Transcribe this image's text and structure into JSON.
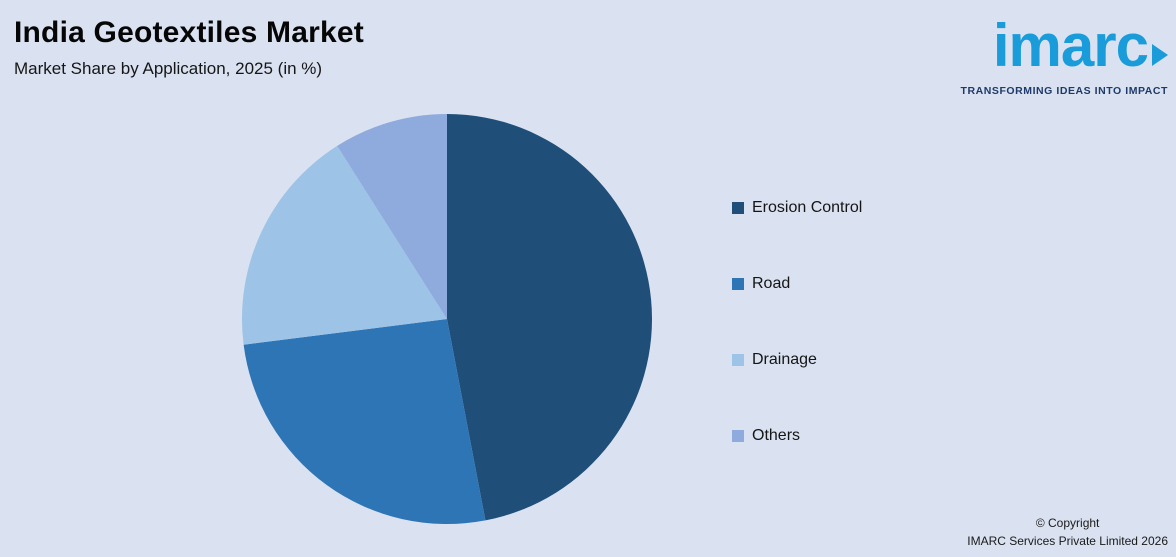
{
  "header": {
    "title": "India Geotextiles Market",
    "subtitle": "Market Share by Application, 2025 (in %)"
  },
  "logo": {
    "text": "imarc",
    "tagline": "TRANSFORMING IDEAS INTO IMPACT",
    "brand_color": "#199cd9",
    "tagline_color": "#1e3a68"
  },
  "chart_data": {
    "type": "pie",
    "title": "Market Share by Application, 2025 (in %)",
    "start_angle_deg": 0,
    "direction": "clockwise",
    "legend_position": "right",
    "data_labels": false,
    "slices": [
      {
        "label": "Erosion Control",
        "value": 47,
        "color": "#1f4e79"
      },
      {
        "label": "Road",
        "value": 26,
        "color": "#2e75b6"
      },
      {
        "label": "Drainage",
        "value": 18,
        "color": "#9dc3e6"
      },
      {
        "label": "Others",
        "value": 9,
        "color": "#8faadc"
      }
    ]
  },
  "footer": {
    "copyright_line1": "© Copyright",
    "copyright_line2": "IMARC Services Private Limited 2026"
  },
  "colors": {
    "background": "#dae2f1"
  }
}
